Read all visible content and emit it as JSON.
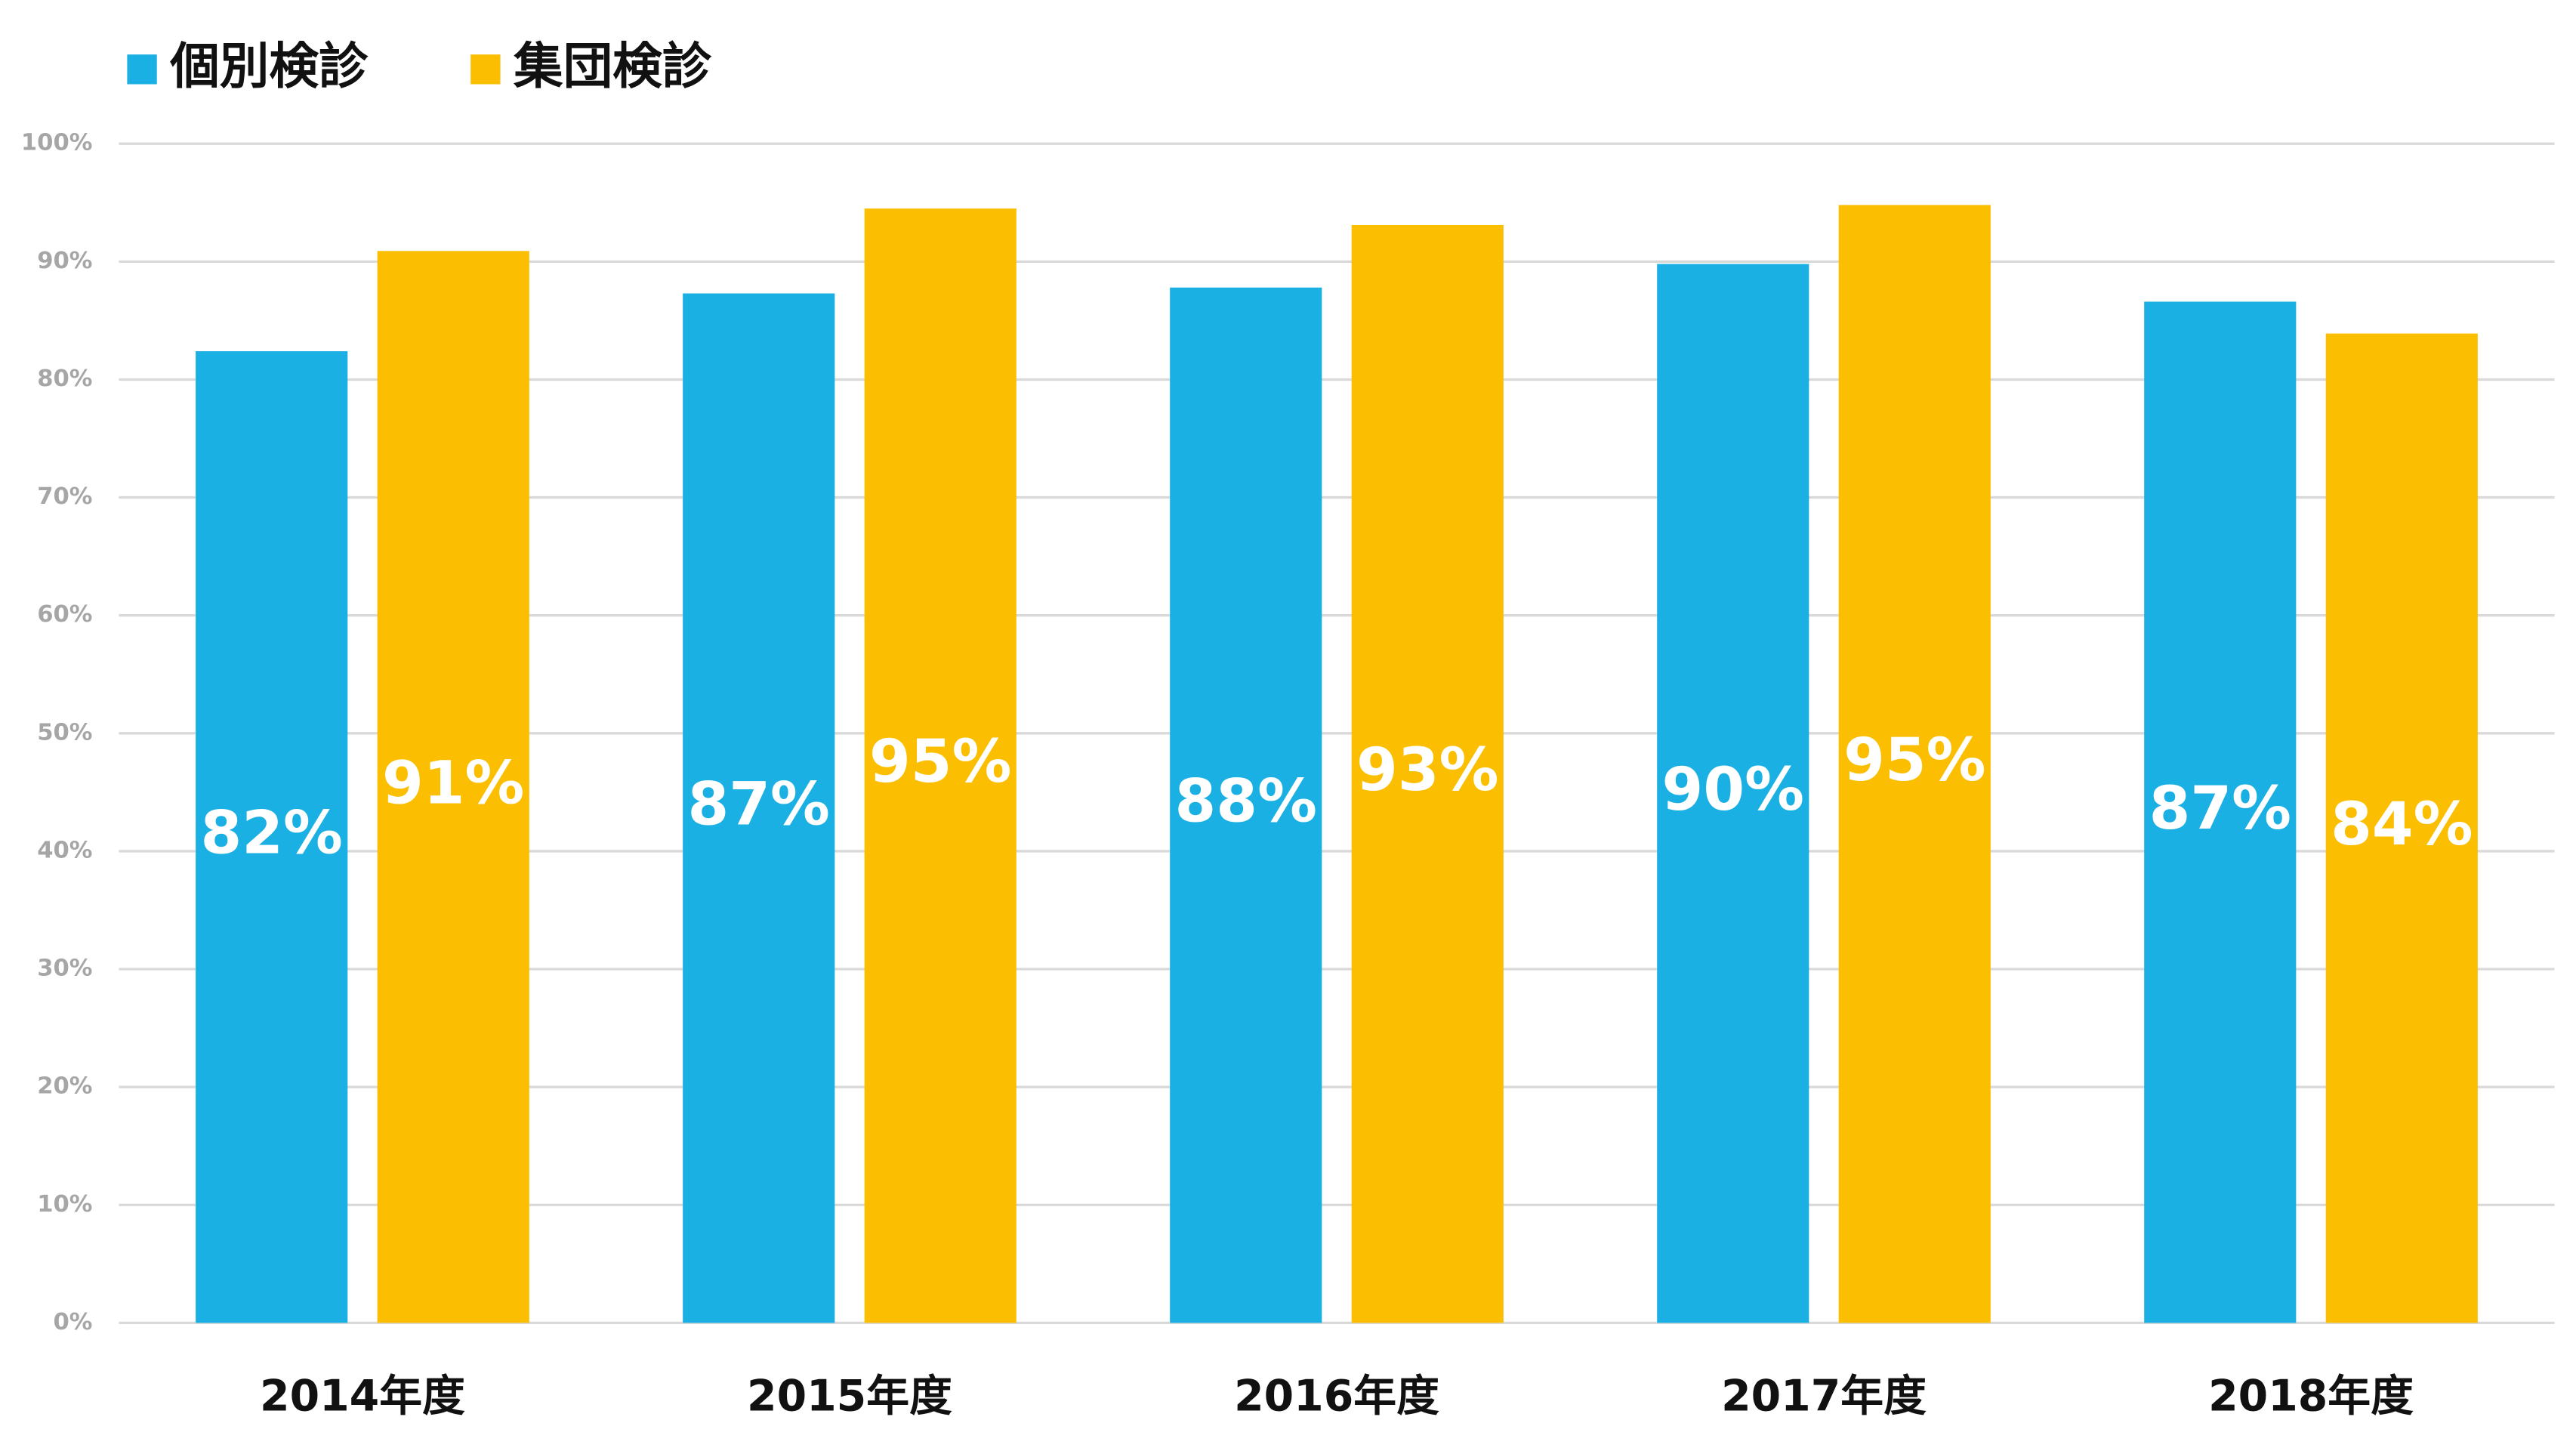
{
  "chart_data": {
    "type": "bar",
    "categories": [
      "2014年度",
      "2015年度",
      "2016年度",
      "2017年度",
      "2018年度"
    ],
    "series": [
      {
        "name": "個別検診",
        "color": "#1ab0e3",
        "values": [
          82.4,
          87.3,
          87.8,
          89.8,
          86.6
        ],
        "value_labels": [
          "82%",
          "87%",
          "88%",
          "90%",
          "87%"
        ]
      },
      {
        "name": "集団検診",
        "color": "#fbbe00",
        "values": [
          90.9,
          94.5,
          93.1,
          94.8,
          83.9
        ],
        "value_labels": [
          "91%",
          "95%",
          "93%",
          "95%",
          "84%"
        ]
      }
    ],
    "ylim": [
      0,
      100
    ],
    "yticks": [
      {
        "value": 0,
        "label": "0%"
      },
      {
        "value": 10,
        "label": "10%"
      },
      {
        "value": 20,
        "label": "20%"
      },
      {
        "value": 30,
        "label": "30%"
      },
      {
        "value": 40,
        "label": "40%"
      },
      {
        "value": 50,
        "label": "50%"
      },
      {
        "value": 60,
        "label": "60%"
      },
      {
        "value": 70,
        "label": "70%"
      },
      {
        "value": 80,
        "label": "80%"
      },
      {
        "value": 90,
        "label": "90%"
      },
      {
        "value": 100,
        "label": "100%"
      }
    ],
    "grid": true,
    "legend": "top-left"
  }
}
